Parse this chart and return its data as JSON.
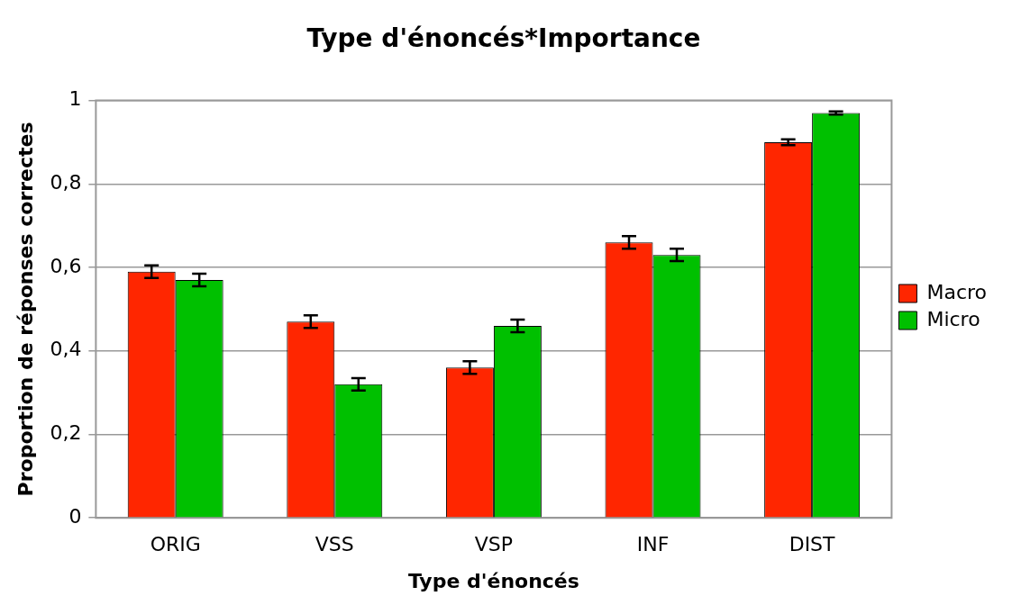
{
  "chart_data": {
    "type": "bar",
    "title": "Type d'énoncés*Importance",
    "xlabel": "Type d'énoncés",
    "ylabel": "Proportion de réponses correctes",
    "categories": [
      "ORIG",
      "VSS",
      "VSP",
      "INF",
      "DIST"
    ],
    "series": [
      {
        "name": "Macro",
        "color": "#ff2600",
        "values": [
          0.59,
          0.47,
          0.36,
          0.66,
          0.9
        ],
        "errors": [
          0.015,
          0.015,
          0.015,
          0.015,
          0.007
        ]
      },
      {
        "name": "Micro",
        "color": "#00c000",
        "values": [
          0.57,
          0.32,
          0.46,
          0.63,
          0.97
        ],
        "errors": [
          0.015,
          0.015,
          0.015,
          0.015,
          0.004
        ]
      }
    ],
    "ylim": [
      0,
      1
    ],
    "yticks": [
      0,
      {
        "value": 0.2,
        "label": "0,2"
      },
      {
        "value": 0.4,
        "label": "0,4"
      },
      {
        "value": 0.6,
        "label": "0,6"
      },
      {
        "value": 0.8,
        "label": "0,8"
      },
      1
    ],
    "grid": "y",
    "legend": "right"
  }
}
